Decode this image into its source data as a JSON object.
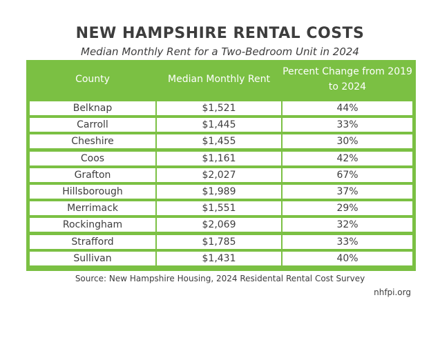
{
  "colors": {
    "header_green": "#7bc043",
    "text": "#3d3d3d",
    "header_text": "#ffffff"
  },
  "title": "NEW HAMPSHIRE RENTAL COSTS",
  "subtitle": "Median Monthly Rent for a Two-Bedroom Unit in 2024",
  "source": "Source: New Hampshire Housing, 2024 Residental Rental Cost Survey",
  "brand": "nhfpi.org",
  "chart_data": {
    "type": "table",
    "title": "NEW HAMPSHIRE RENTAL COSTS",
    "subtitle": "Median Monthly Rent for a Two-Bedroom Unit in 2024",
    "columns": [
      "County",
      "Median Monthly Rent",
      "Percent Change from 2019 to 2024"
    ],
    "rows": [
      [
        "Belknap",
        "$1,521",
        "44%"
      ],
      [
        "Carroll",
        "$1,445",
        "33%"
      ],
      [
        "Cheshire",
        "$1,455",
        "30%"
      ],
      [
        "Coos",
        "$1,161",
        "42%"
      ],
      [
        "Grafton",
        "$2,027",
        "67%"
      ],
      [
        "Hillsborough",
        "$1,989",
        "37%"
      ],
      [
        "Merrimack",
        "$1,551",
        "29%"
      ],
      [
        "Rockingham",
        "$2,069",
        "32%"
      ],
      [
        "Strafford",
        "$1,785",
        "33%"
      ],
      [
        "Sullivan",
        "$1,431",
        "40%"
      ]
    ]
  }
}
